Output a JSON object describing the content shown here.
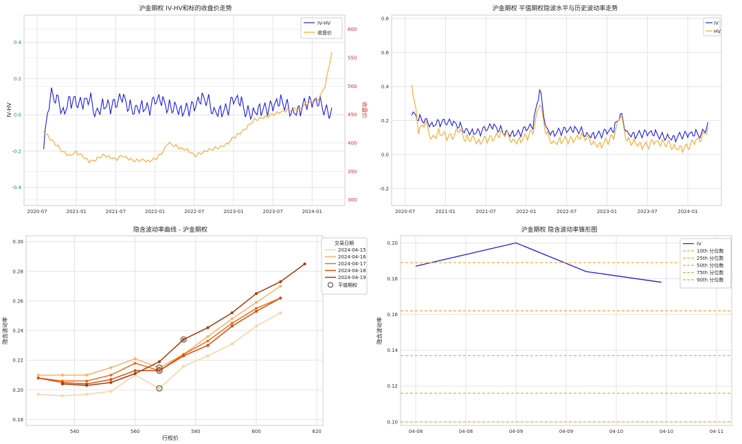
{
  "chart_data": [
    {
      "type": "line",
      "title": "沪金期权 IV-HV和标的收盘价走势",
      "ylabel": "IV-HV",
      "ylabel_right": "收盘价",
      "ylim": [
        -0.5,
        0.55
      ],
      "ylim_right": [
        290,
        625
      ],
      "yticks": [
        "0.4",
        "0.2",
        "0.0",
        "-0.2",
        "-0.4"
      ],
      "yticks_right": [
        "600",
        "550",
        "500",
        "450",
        "400",
        "350",
        "300"
      ],
      "xticks": [
        "2020-07",
        "2021-01",
        "2021-07",
        "2022-01",
        "2022-07",
        "2023-01",
        "2023-07",
        "2024-01"
      ],
      "legend_position": "top-right",
      "series": [
        {
          "name": "IV-HV",
          "color": "#1a1ae6",
          "axis": "left",
          "x": [
            "2020-08",
            "2020-09",
            "2020-10",
            "2020-11",
            "2020-12",
            "2021-01",
            "2021-02",
            "2021-03",
            "2021-04",
            "2021-05",
            "2021-06",
            "2021-07",
            "2021-08",
            "2021-09",
            "2021-10",
            "2021-11",
            "2021-12",
            "2022-01",
            "2022-02",
            "2022-03",
            "2022-04",
            "2022-05",
            "2022-06",
            "2022-07",
            "2022-08",
            "2022-09",
            "2022-10",
            "2022-11",
            "2022-12",
            "2023-01",
            "2023-02",
            "2023-03",
            "2023-04",
            "2023-05",
            "2023-06",
            "2023-07",
            "2023-08",
            "2023-09",
            "2023-10",
            "2023-11",
            "2023-12",
            "2024-01",
            "2024-02",
            "2024-03",
            "2024-04"
          ],
          "y": [
            -0.19,
            0.09,
            0.11,
            0.04,
            0.1,
            0.05,
            0.03,
            0.08,
            0.02,
            0.09,
            0.06,
            0.04,
            0.07,
            0.03,
            0.05,
            0.08,
            0.04,
            0.06,
            0.05,
            0.03,
            0.07,
            0.05,
            0.04,
            0.02,
            0.06,
            0.08,
            0.04,
            0.05,
            0.03,
            0.06,
            0.05,
            0.01,
            0.04,
            0.06,
            0.03,
            0.02,
            0.05,
            0.06,
            0.04,
            0.05,
            0.06,
            0.04,
            0.05,
            0.03,
            0.04
          ]
        },
        {
          "name": "收盘价",
          "color": "#f5a623",
          "axis": "right",
          "x": [
            "2020-08",
            "2020-09",
            "2020-10",
            "2020-11",
            "2020-12",
            "2021-01",
            "2021-02",
            "2021-03",
            "2021-04",
            "2021-05",
            "2021-06",
            "2021-07",
            "2021-08",
            "2021-09",
            "2021-10",
            "2021-11",
            "2021-12",
            "2022-01",
            "2022-02",
            "2022-03",
            "2022-04",
            "2022-05",
            "2022-06",
            "2022-07",
            "2022-08",
            "2022-09",
            "2022-10",
            "2022-11",
            "2022-12",
            "2023-01",
            "2023-02",
            "2023-03",
            "2023-04",
            "2023-05",
            "2023-06",
            "2023-07",
            "2023-08",
            "2023-09",
            "2023-10",
            "2023-11",
            "2023-12",
            "2024-01",
            "2024-02",
            "2024-03",
            "2024-04"
          ],
          "y": [
            420,
            405,
            395,
            385,
            380,
            385,
            375,
            365,
            370,
            380,
            378,
            372,
            376,
            370,
            368,
            372,
            370,
            372,
            380,
            398,
            395,
            392,
            390,
            378,
            380,
            385,
            390,
            395,
            400,
            410,
            415,
            425,
            440,
            445,
            448,
            450,
            452,
            455,
            460,
            462,
            470,
            472,
            475,
            500,
            560
          ]
        }
      ]
    },
    {
      "type": "line",
      "title": "沪金期权 平值期权隐波水平与历史波动率走势",
      "ylim": [
        -0.3,
        0.82
      ],
      "yticks": [
        "0.8",
        "0.6",
        "0.4",
        "0.2",
        "0.0",
        "-0.2"
      ],
      "xticks": [
        "2020-07",
        "2021-01",
        "2021-07",
        "2022-01",
        "2022-07",
        "2023-01",
        "2023-07",
        "2024-01"
      ],
      "legend_position": "top-right",
      "series": [
        {
          "name": "IV",
          "color": "#1a1ae6",
          "x": [
            "2020-08",
            "2020-09",
            "2020-10",
            "2020-11",
            "2020-12",
            "2021-01",
            "2021-02",
            "2021-03",
            "2021-04",
            "2021-05",
            "2021-06",
            "2021-07",
            "2021-08",
            "2021-09",
            "2021-10",
            "2021-11",
            "2021-12",
            "2022-01",
            "2022-02",
            "2022-03",
            "2022-04",
            "2022-05",
            "2022-06",
            "2022-07",
            "2022-08",
            "2022-09",
            "2022-10",
            "2022-11",
            "2022-12",
            "2023-01",
            "2023-02",
            "2023-03",
            "2023-04",
            "2023-05",
            "2023-06",
            "2023-07",
            "2023-08",
            "2023-09",
            "2023-10",
            "2023-11",
            "2023-12",
            "2024-01",
            "2024-02",
            "2024-03",
            "2024-04"
          ],
          "y": [
            0.23,
            0.2,
            0.21,
            0.19,
            0.2,
            0.18,
            0.17,
            0.16,
            0.15,
            0.15,
            0.14,
            0.14,
            0.15,
            0.14,
            0.14,
            0.14,
            0.13,
            0.14,
            0.15,
            0.38,
            0.16,
            0.14,
            0.14,
            0.13,
            0.13,
            0.14,
            0.13,
            0.13,
            0.12,
            0.12,
            0.13,
            0.24,
            0.14,
            0.13,
            0.12,
            0.11,
            0.11,
            0.11,
            0.12,
            0.11,
            0.11,
            0.1,
            0.11,
            0.12,
            0.19
          ]
        },
        {
          "name": "HV",
          "color": "#f5a623",
          "x": [
            "2020-08",
            "2020-09",
            "2020-10",
            "2020-11",
            "2020-12",
            "2021-01",
            "2021-02",
            "2021-03",
            "2021-04",
            "2021-05",
            "2021-06",
            "2021-07",
            "2021-08",
            "2021-09",
            "2021-10",
            "2021-11",
            "2021-12",
            "2022-01",
            "2022-02",
            "2022-03",
            "2022-04",
            "2022-05",
            "2022-06",
            "2022-07",
            "2022-08",
            "2022-09",
            "2022-10",
            "2022-11",
            "2022-12",
            "2023-01",
            "2023-02",
            "2023-03",
            "2023-04",
            "2023-05",
            "2023-06",
            "2023-07",
            "2023-08",
            "2023-09",
            "2023-10",
            "2023-11",
            "2023-12",
            "2024-01",
            "2024-02",
            "2024-03",
            "2024-04"
          ],
          "y": [
            0.41,
            0.12,
            0.18,
            0.1,
            0.15,
            0.12,
            0.09,
            0.13,
            0.08,
            0.11,
            0.09,
            0.1,
            0.08,
            0.1,
            0.12,
            0.09,
            0.1,
            0.11,
            0.12,
            0.29,
            0.12,
            0.08,
            0.1,
            0.09,
            0.07,
            0.09,
            0.1,
            0.08,
            0.07,
            0.08,
            0.09,
            0.22,
            0.08,
            0.09,
            0.07,
            0.05,
            0.06,
            0.05,
            0.07,
            0.06,
            0.05,
            0.04,
            0.06,
            0.08,
            0.16
          ]
        }
      ]
    },
    {
      "type": "line",
      "title": "隐含波动率曲线 - 沪金期权",
      "xlabel": "行权价",
      "ylabel": "隐含波动率",
      "xlim": [
        524,
        622
      ],
      "ylim": [
        0.176,
        0.304
      ],
      "xticks": [
        540,
        560,
        580,
        600,
        620
      ],
      "yticks": [
        0.18,
        0.2,
        0.22,
        0.24,
        0.26,
        0.28,
        0.3
      ],
      "legend_title": "交易日期",
      "legend_position": "top-right",
      "atm_label": "平值期权",
      "series": [
        {
          "name": "2024-04-15",
          "color": "#fdd0a2",
          "x": [
            528,
            536,
            544,
            552,
            560,
            568,
            576,
            584,
            592,
            600,
            608
          ],
          "y": [
            0.197,
            0.196,
            0.197,
            0.199,
            0.21,
            0.201,
            0.216,
            0.223,
            0.231,
            0.243,
            0.252
          ],
          "atm": {
            "x": 568,
            "y": 0.201
          }
        },
        {
          "name": "2024-04-16",
          "color": "#fdae6b",
          "x": [
            528,
            536,
            544,
            552,
            560,
            568,
            576,
            584,
            592,
            600,
            608
          ],
          "y": [
            0.21,
            0.21,
            0.21,
            0.215,
            0.221,
            0.215,
            0.224,
            0.236,
            0.248,
            0.259,
            0.27
          ],
          "atm": {
            "x": 568,
            "y": 0.215
          }
        },
        {
          "name": "2024-04-17",
          "color": "#f16913",
          "x": [
            528,
            536,
            544,
            552,
            560,
            568,
            576,
            584,
            592,
            600,
            608
          ],
          "y": [
            0.208,
            0.206,
            0.206,
            0.21,
            0.218,
            0.213,
            0.224,
            0.233,
            0.245,
            0.255,
            0.262
          ],
          "atm": {
            "x": 568,
            "y": 0.213
          }
        },
        {
          "name": "2024-04-18",
          "color": "#d94801",
          "x": [
            528,
            536,
            544,
            552,
            560,
            568,
            576,
            584,
            592,
            600,
            608
          ],
          "y": [
            0.208,
            0.205,
            0.204,
            0.207,
            0.213,
            0.213,
            0.223,
            0.23,
            0.243,
            0.253,
            0.262
          ],
          "atm": {
            "x": 568,
            "y": 0.213
          }
        },
        {
          "name": "2024-04-19",
          "color": "#a63603",
          "x": [
            536,
            544,
            552,
            560,
            568,
            576,
            584,
            592,
            600,
            608,
            616
          ],
          "y": [
            0.204,
            0.203,
            0.205,
            0.211,
            0.219,
            0.234,
            0.242,
            0.252,
            0.265,
            0.273,
            0.285
          ],
          "atm": {
            "x": 576,
            "y": 0.234
          }
        }
      ]
    },
    {
      "type": "line",
      "title": "沪金期权 隐含波动率锥形图",
      "ylabel": "隐含波动率",
      "ylim": [
        0.098,
        0.204
      ],
      "yticks": [
        0.1,
        0.12,
        0.14,
        0.16,
        0.18,
        0.2
      ],
      "xticks": [
        "04-08",
        "04-08",
        "04-09",
        "04-09",
        "04-10",
        "04-10",
        "04-11"
      ],
      "legend_position": "top-right",
      "series": [
        {
          "name": "IV",
          "color": "#1a1ae6",
          "x": [
            0,
            2,
            3.4,
            4.9
          ],
          "y": [
            0.187,
            0.2,
            0.184,
            0.178
          ]
        },
        {
          "name": "10th 分位数",
          "color": "#f5a623",
          "dashed": true,
          "y": 0.1
        },
        {
          "name": "25th 分位数",
          "color": "#f5a623",
          "dashed": true,
          "y": 0.116
        },
        {
          "name": "50th 分位数",
          "color": "#f5a623",
          "dashed": true,
          "y": 0.137
        },
        {
          "name": "75th 分位数",
          "color": "#f5a623",
          "dashed": true,
          "y": 0.162
        },
        {
          "name": "90th 分位数",
          "color": "#f5a623",
          "dashed": true,
          "y": 0.189
        }
      ]
    }
  ]
}
